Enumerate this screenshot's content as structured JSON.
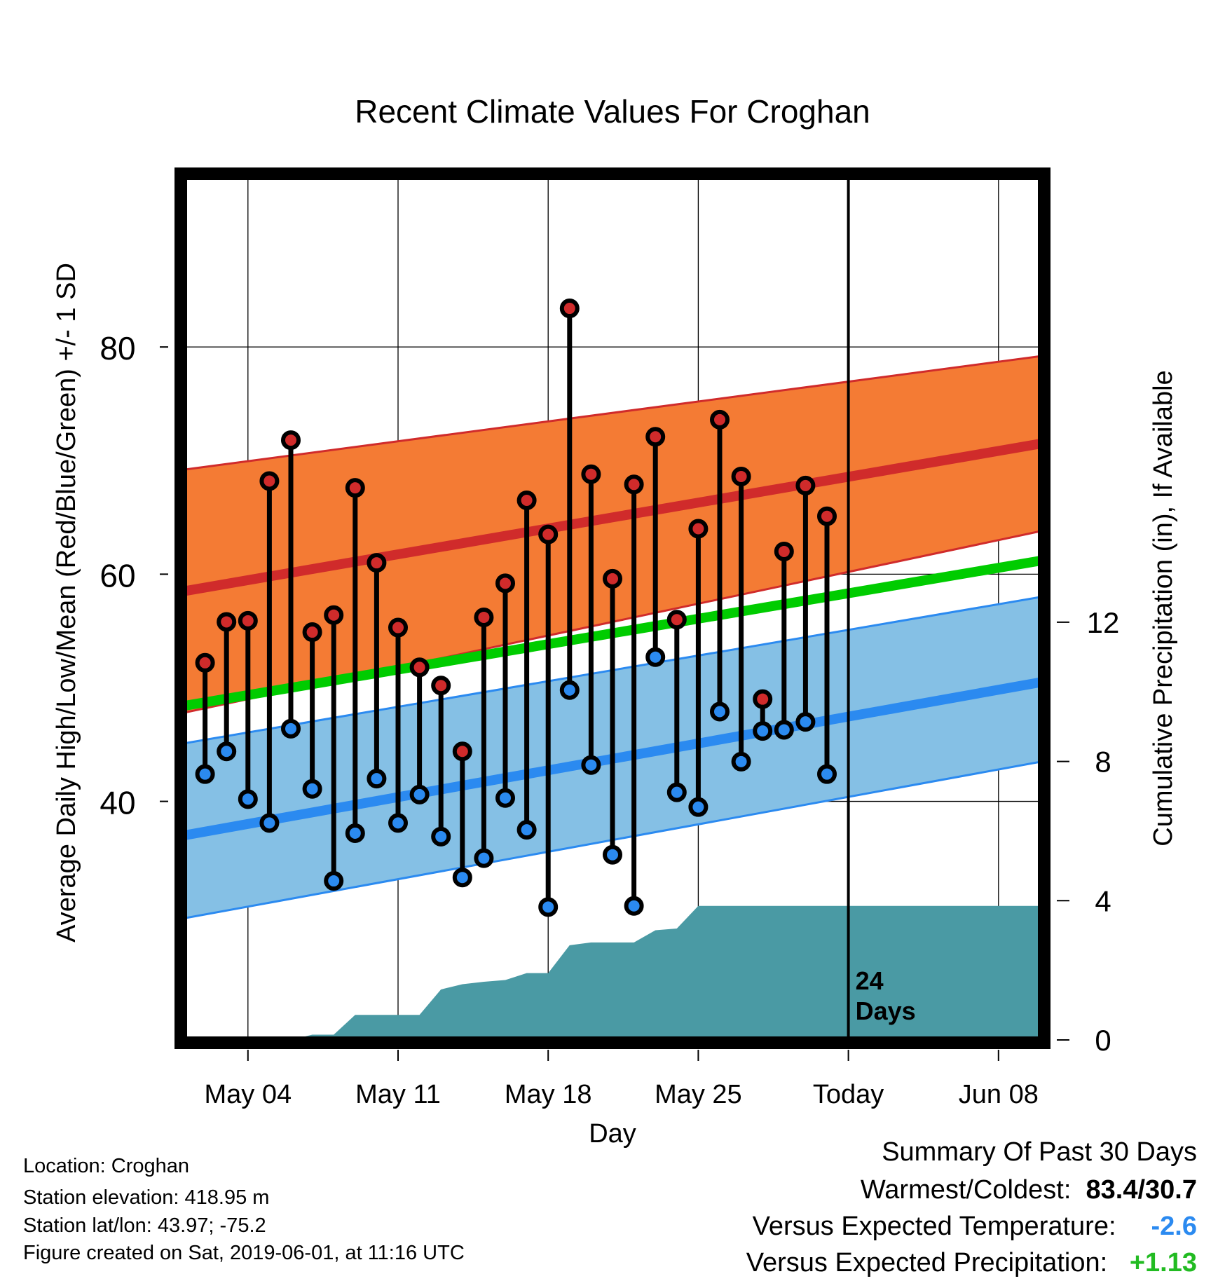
{
  "chart_data": {
    "type": "line",
    "title": "Recent Climate Values For Croghan",
    "xlabel": "Day",
    "ylabel": "Average Daily High/Low/Mean (Red/Blue/Green) +/- 1 SD",
    "y2label": "Cumulative Precipitation (in), If Available",
    "x_ticks": [
      "May 04",
      "May 11",
      "May 18",
      "May 25",
      "Today",
      "Jun 08"
    ],
    "y_ticks": [
      "40",
      "60",
      "80"
    ],
    "y2_ticks": [
      "0",
      "4",
      "8",
      "12"
    ],
    "xlim": [
      "2019-05-01",
      "2019-06-10"
    ],
    "ylim": [
      19,
      95
    ],
    "y2lim": [
      0,
      24.8
    ],
    "today": "2019-06-01",
    "today_label_number": "24",
    "today_label_unit": "Days",
    "grid": true,
    "normal_high": {
      "x": [
        "2019-05-01",
        "2019-06-10"
      ],
      "mean": [
        58.5,
        71.5
      ],
      "upper": [
        69.2,
        79.2
      ],
      "lower": [
        47.8,
        63.8
      ]
    },
    "normal_low": {
      "x": [
        "2019-05-01",
        "2019-06-10"
      ],
      "mean": [
        37,
        50.5
      ],
      "upper": [
        45.1,
        58
      ],
      "lower": [
        29.7,
        43.5
      ]
    },
    "normal_mean": {
      "x": [
        "2019-05-01",
        "2019-06-10"
      ],
      "values": [
        48.4,
        61.2
      ]
    },
    "daily": {
      "dates": [
        "2019-05-02",
        "2019-05-03",
        "2019-05-04",
        "2019-05-05",
        "2019-05-06",
        "2019-05-07",
        "2019-05-08",
        "2019-05-09",
        "2019-05-10",
        "2019-05-11",
        "2019-05-12",
        "2019-05-13",
        "2019-05-14",
        "2019-05-15",
        "2019-05-16",
        "2019-05-17",
        "2019-05-18",
        "2019-05-19",
        "2019-05-20",
        "2019-05-21",
        "2019-05-22",
        "2019-05-23",
        "2019-05-24",
        "2019-05-25",
        "2019-05-26",
        "2019-05-27",
        "2019-05-28",
        "2019-05-29",
        "2019-05-30",
        "2019-05-31"
      ],
      "high": [
        52.2,
        55.8,
        55.9,
        68.2,
        71.8,
        54.9,
        56.4,
        67.6,
        61,
        55.3,
        51.8,
        50.2,
        44.4,
        56.2,
        59.2,
        66.5,
        63.5,
        83.4,
        68.8,
        59.6,
        67.9,
        72.1,
        56,
        64,
        73.6,
        68.6,
        49,
        62,
        67.8,
        65.1
      ],
      "low": [
        42.4,
        44.4,
        40.2,
        38.1,
        46.4,
        41.1,
        33,
        37.2,
        42,
        38.1,
        40.6,
        36.9,
        33.3,
        35,
        40.3,
        37.5,
        30.7,
        49.8,
        43.2,
        35.3,
        30.8,
        52.7,
        40.8,
        39.5,
        47.9,
        43.5,
        46.2,
        46.3,
        47,
        42.4
      ]
    },
    "precip": {
      "dates": [
        "2019-05-01",
        "2019-05-06",
        "2019-05-07",
        "2019-05-08",
        "2019-05-09",
        "2019-05-10",
        "2019-05-11",
        "2019-05-12",
        "2019-05-13",
        "2019-05-14",
        "2019-05-15",
        "2019-05-16",
        "2019-05-17",
        "2019-05-18",
        "2019-05-19",
        "2019-05-20",
        "2019-05-21",
        "2019-05-22",
        "2019-05-23",
        "2019-05-24",
        "2019-05-25",
        "2019-06-10"
      ],
      "values": [
        0,
        0,
        0.15,
        0.15,
        0.72,
        0.72,
        0.72,
        0.72,
        1.45,
        1.6,
        1.67,
        1.72,
        1.92,
        1.92,
        2.72,
        2.8,
        2.8,
        2.8,
        3.15,
        3.2,
        3.85,
        3.85
      ],
      "color": "#4a9aa4"
    },
    "colors": {
      "high": "#d02b2b",
      "low": "#2b8af0",
      "mean": "#00cc00",
      "high_band": "#f47b34",
      "low_band": "#85c0e5"
    }
  },
  "info": {
    "location": "Location: Croghan",
    "elevation": "Station elevation: 418.95 m",
    "latlon": "Station lat/lon: 43.97; -75.2",
    "created": "Figure created on Sat, 2019-06-01, at 11:16 UTC"
  },
  "summary": {
    "heading": "Summary Of Past 30 Days",
    "warmest_label": "Warmest/Coldest:",
    "warmest_value": "83.4/30.7",
    "temp_label": "Versus Expected Temperature:",
    "temp_value": "-2.6",
    "temp_color": "#2b8af0",
    "precip_label": "Versus Expected Precipitation:",
    "precip_value": "+1.13",
    "precip_color": "#22bb22"
  }
}
